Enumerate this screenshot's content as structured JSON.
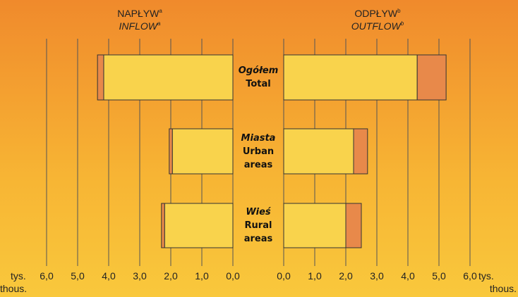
{
  "chart_data": [
    {
      "type": "bar",
      "title": "NAPŁYW",
      "title_note": "a",
      "subtitle": "INFLOW",
      "subtitle_note": "a",
      "categories": [
        "Ogółem",
        "Miasta",
        "Wieś"
      ],
      "categories_en": [
        "Total",
        "Urban areas",
        "Rural areas"
      ],
      "reversed": true,
      "xlim": [
        0,
        6
      ],
      "xticks": [
        {
          "value": 0,
          "label": "0,0"
        },
        {
          "value": 1,
          "label": "1,0"
        },
        {
          "value": 2,
          "label": "2,0"
        },
        {
          "value": 3,
          "label": "3,0"
        },
        {
          "value": 4,
          "label": "4,0"
        },
        {
          "value": 5,
          "label": "5,0"
        },
        {
          "value": 6,
          "label": "6,0"
        }
      ],
      "grid": true,
      "axis_label": [
        "tys.",
        "thous."
      ],
      "series": [
        {
          "color": "#f9d34c",
          "values": [
            4.16,
            1.95,
            2.2
          ]
        },
        {
          "color": "#e8894a",
          "values": [
            0.2,
            0.1,
            0.1
          ]
        }
      ]
    },
    {
      "type": "bar",
      "title": "ODPŁYW",
      "title_note": "b",
      "subtitle": "OUTFLOW",
      "subtitle_note": "b",
      "reversed": false,
      "xlim": [
        0,
        6
      ],
      "xticks": [
        {
          "value": 0,
          "label": "0,0"
        },
        {
          "value": 1,
          "label": "1,0"
        },
        {
          "value": 2,
          "label": "2,0"
        },
        {
          "value": 3,
          "label": "3,0"
        },
        {
          "value": 4,
          "label": "4,0"
        },
        {
          "value": 5,
          "label": "5,0"
        },
        {
          "value": 6,
          "label": "6,0"
        }
      ],
      "grid": true,
      "axis_label": [
        "tys.",
        "thous."
      ],
      "series": [
        {
          "color": "#f9d34c",
          "values": [
            4.3,
            2.25,
            2.0
          ]
        },
        {
          "color": "#e8894a",
          "values": [
            0.93,
            0.45,
            0.5
          ]
        }
      ]
    }
  ]
}
